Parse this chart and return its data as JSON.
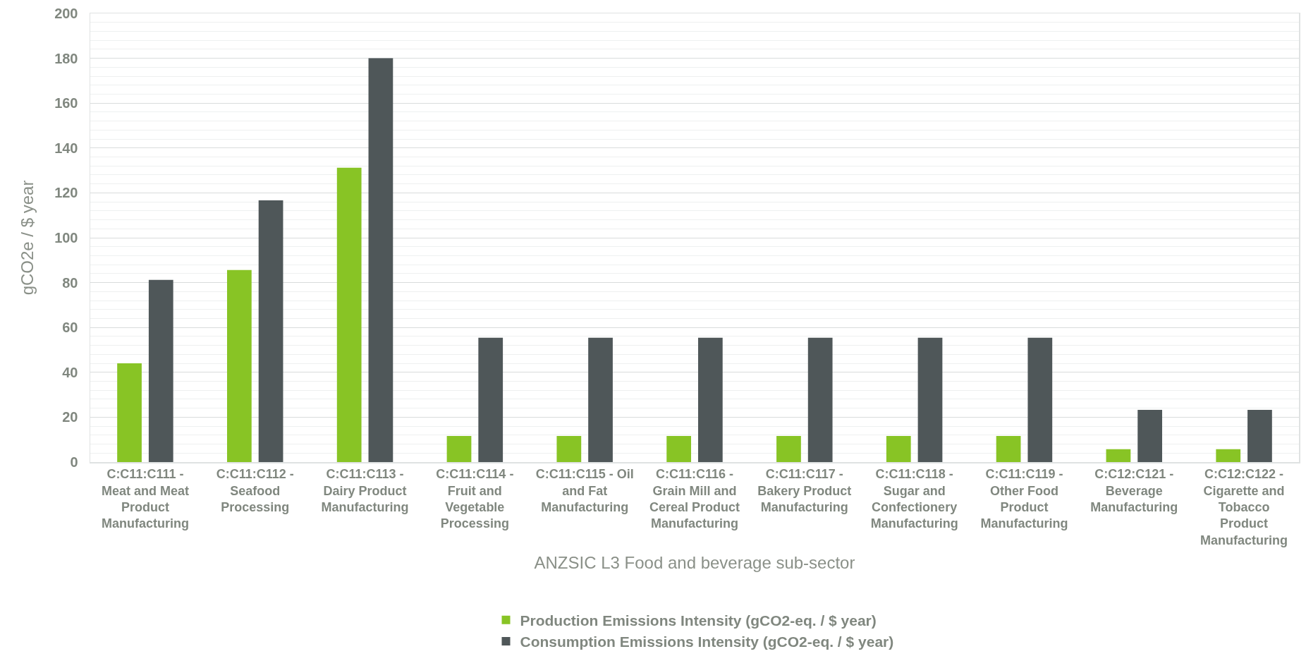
{
  "chart_data": {
    "type": "bar",
    "xlabel": "ANZSIC L3 Food and beverage sub-sector",
    "ylabel": "gCO2e / $ year",
    "categories": [
      "C:C11:C111 - Meat and Meat Product Manufacturing",
      "C:C11:C112 - Seafood Processing",
      "C:C11:C113 - Dairy Product Manufacturing",
      "C:C11:C114 - Fruit and Vegetable Processing",
      "C:C11:C115 - Oil and Fat Manufacturing",
      "C:C11:C116 - Grain Mill and Cereal Product Manufacturing",
      "C:C11:C117 - Bakery Product Manufacturing",
      "C:C11:C118 - Sugar and Confectionery Manufacturing",
      "C:C11:C119 - Other Food Product Manufacturing",
      "C:C12:C121 - Beverage Manufacturing",
      "C:C12:C122 - Cigarette and Tobacco Product Manufacturing"
    ],
    "series": [
      {
        "name": "Production Emissions Intensity (gCO2-eq. / $ year)",
        "color": "#88c425",
        "values": [
          44,
          85.6,
          131.2,
          11.6,
          11.6,
          11.6,
          11.6,
          11.6,
          11.6,
          5.7,
          5.7
        ]
      },
      {
        "name": "Consumption Emissions Intensity (gCO2-eq. / $ year)",
        "color": "#4f5759",
        "values": [
          81.2,
          116.7,
          180,
          55.4,
          55.4,
          55.4,
          55.4,
          55.4,
          55.4,
          23.3,
          23.3
        ]
      }
    ],
    "ylim": [
      0,
      200
    ],
    "yticks": [
      0,
      {
        "value": 4,
        "label": null
      },
      {
        "value": 8,
        "label": null
      },
      {
        "value": 12,
        "label": null
      },
      {
        "value": 16,
        "label": null
      },
      20,
      {
        "value": 24,
        "label": null
      },
      {
        "value": 28,
        "label": null
      },
      {
        "value": 32,
        "label": null
      },
      {
        "value": 36,
        "label": null
      },
      40,
      {
        "value": 44,
        "label": null
      },
      {
        "value": 48,
        "label": null
      },
      {
        "value": 52,
        "label": null
      },
      {
        "value": 56,
        "label": null
      },
      60,
      {
        "value": 64,
        "label": null
      },
      {
        "value": 68,
        "label": null
      },
      {
        "value": 72,
        "label": null
      },
      {
        "value": 76,
        "label": null
      },
      80,
      {
        "value": 84,
        "label": null
      },
      {
        "value": 88,
        "label": null
      },
      {
        "value": 92,
        "label": null
      },
      {
        "value": 96,
        "label": null
      },
      100,
      {
        "value": 104,
        "label": null
      },
      {
        "value": 108,
        "label": null
      },
      {
        "value": 112,
        "label": null
      },
      {
        "value": 116,
        "label": null
      },
      120,
      {
        "value": 124,
        "label": null
      },
      {
        "value": 128,
        "label": null
      },
      {
        "value": 132,
        "label": null
      },
      {
        "value": 136,
        "label": null
      },
      140,
      {
        "value": 144,
        "label": null
      },
      {
        "value": 148,
        "label": null
      },
      {
        "value": 152,
        "label": null
      },
      {
        "value": 156,
        "label": null
      },
      160,
      {
        "value": 164,
        "label": null
      },
      {
        "value": 168,
        "label": null
      },
      {
        "value": 172,
        "label": null
      },
      {
        "value": 176,
        "label": null
      },
      180,
      {
        "value": 184,
        "label": null
      },
      {
        "value": 188,
        "label": null
      },
      {
        "value": 192,
        "label": null
      },
      {
        "value": 196,
        "label": null
      },
      200
    ],
    "grid": true,
    "legend": "bottom"
  }
}
